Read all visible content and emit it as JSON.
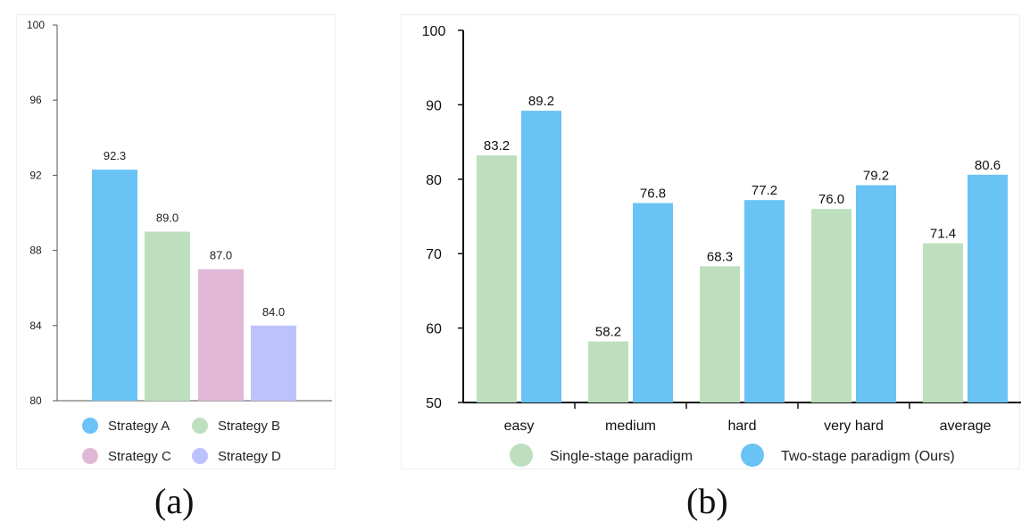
{
  "chart_data": [
    {
      "type": "bar",
      "panel_label": "(a)",
      "categories": [
        "Strategy A",
        "Strategy B",
        "Strategy C",
        "Strategy D"
      ],
      "values": [
        92.3,
        89.0,
        87.0,
        84.0
      ],
      "value_labels": [
        "92.3",
        "89.0",
        "87.0",
        "84.0"
      ],
      "colors": [
        "#69C3F5",
        "#BEDFBE",
        "#E0B8D6",
        "#BCC3FC"
      ],
      "yticks": [
        "80",
        "84",
        "88",
        "92",
        "96",
        "100"
      ],
      "ylim": [
        80,
        100
      ],
      "xlabel": "",
      "ylabel": "",
      "legend": [
        "Strategy A",
        "Strategy B",
        "Strategy C",
        "Strategy D"
      ],
      "legend_position": "bottom",
      "grid": false
    },
    {
      "type": "bar",
      "panel_label": "(b)",
      "categories": [
        "easy",
        "medium",
        "hard",
        "very hard",
        "average"
      ],
      "series": [
        {
          "name": "Single-stage paradigm",
          "color": "#BEDFBE",
          "values": [
            83.2,
            58.2,
            68.3,
            76.0,
            71.4
          ],
          "value_labels": [
            "83.2",
            "58.2",
            "68.3",
            "76.0",
            "71.4"
          ]
        },
        {
          "name": "Two-stage paradigm (Ours)",
          "color": "#69C3F5",
          "values": [
            89.2,
            76.8,
            77.2,
            79.2,
            80.6
          ],
          "value_labels": [
            "89.2",
            "76.8",
            "77.2",
            "79.2",
            "80.6"
          ]
        }
      ],
      "yticks": [
        "50",
        "60",
        "70",
        "80",
        "90",
        "100"
      ],
      "ylim": [
        50,
        100
      ],
      "xlabel": "",
      "ylabel": "",
      "legend_position": "bottom",
      "grid": false
    }
  ]
}
